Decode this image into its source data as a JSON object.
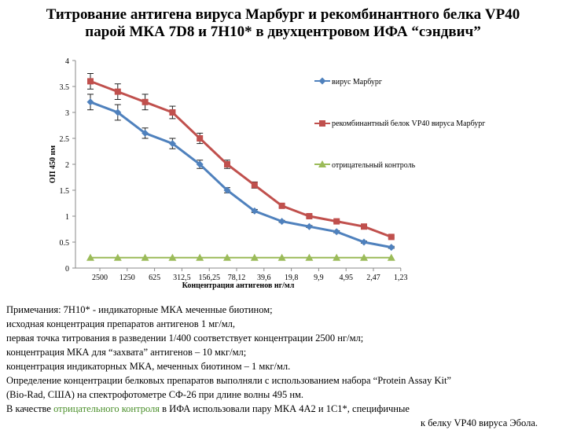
{
  "title": {
    "line1": "Титрование антигена вируса Марбург и рекомбинантного белка VP40",
    "line2": "парой МКА 7D8 и 7Н10* в двухцентровом ИФА “сэндвич”"
  },
  "chart_data": {
    "type": "line",
    "title": "",
    "xlabel": "Концентрация антигенов нг/мл",
    "ylabel": "ОП 450 нм",
    "categories": [
      "2500",
      "1250",
      "625",
      "312,5",
      "156,25",
      "78,12",
      "39,6",
      "19,8",
      "9,9",
      "4,95",
      "2,47",
      "1,23"
    ],
    "ylim": [
      0,
      4
    ],
    "yticks": [
      "0",
      "0.5",
      "1",
      "1.5",
      "2",
      "2.5",
      "3",
      "3.5",
      "4"
    ],
    "legend_position": "right",
    "series": [
      {
        "name": "вирус Марбург",
        "color": "#4f81bd",
        "marker": "diamond",
        "values": [
          3.2,
          3.0,
          2.6,
          2.4,
          2.0,
          1.5,
          1.1,
          0.9,
          0.8,
          0.7,
          0.5,
          0.4
        ],
        "errors": [
          0.15,
          0.15,
          0.1,
          0.1,
          0.08,
          0.05,
          0.03,
          0.02,
          0.02,
          0.02,
          0.02,
          0.02
        ]
      },
      {
        "name": "рекомбинантный белок VP40 вируса Марбург",
        "color": "#c0504d",
        "marker": "square",
        "values": [
          3.6,
          3.4,
          3.2,
          3.0,
          2.5,
          2.0,
          1.6,
          1.2,
          1.0,
          0.9,
          0.8,
          0.6
        ],
        "errors": [
          0.15,
          0.15,
          0.15,
          0.12,
          0.1,
          0.08,
          0.06,
          0.03,
          0.02,
          0.02,
          0.02,
          0.02
        ]
      },
      {
        "name": "отрицательный контроль",
        "color": "#9bbb59",
        "marker": "triangle",
        "values": [
          0.2,
          0.2,
          0.2,
          0.2,
          0.2,
          0.2,
          0.2,
          0.2,
          0.2,
          0.2,
          0.2,
          0.2
        ],
        "errors": []
      }
    ]
  },
  "notes": {
    "line1": "Примечания: 7Н10* - индикаторные МКА меченные биотином;",
    "line2": "исходная концентрация препаратов антигенов 1 мг/мл,",
    "line3": "первая точка титрования в разведении 1/400 соответствует концентрации 2500 нг/мл;",
    "line4": "концентрация МКА для “захвата” антигенов – 10 мкг/мл;",
    "line5": "концентрация индикаторных МКА, меченных биотином – 1 мкг/мл.",
    "line6": "Определение концентрации белковых препаратов выполняли с использованием набора “Protein Assay Kit”",
    "line7": "(Bio-Rad, США) на спектрофотометре СФ-26 при длине волны 495 нм.",
    "line8_part1": "В качестве ",
    "line8_green": "отрицательного контроля",
    "line8_part2": " в ИФА  использовали пару МКА 4А2 и 1С1*, специфичные",
    "line9": "к белку VP40 вируса Эбола."
  }
}
